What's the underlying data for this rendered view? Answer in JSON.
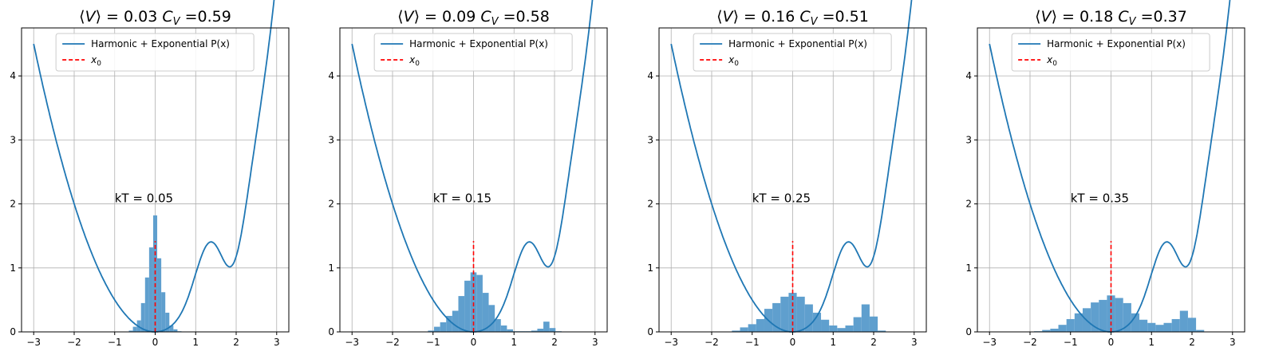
{
  "figure": {
    "colors": {
      "curve": "#1f77b4",
      "hist": "#5f9fce",
      "marker": "#ff0000",
      "grid": "#b0b0b0",
      "axis": "#000000"
    }
  },
  "chart_data": [
    {
      "type": "line+histogram",
      "title": "⟨V⟩ = 0.03 C_V =0.59",
      "title_parts": {
        "avg": "0.03",
        "cv": "0.59"
      },
      "annotation": "kT = 0.05",
      "legend": [
        "Harmonic + Exponential P(x)",
        "x_0"
      ],
      "legend_placement": "top-center",
      "xlim": [
        -3.3,
        3.3
      ],
      "ylim": [
        0,
        4.75
      ],
      "xticks": [
        "−3",
        "−2",
        "−1",
        "0",
        "1",
        "2",
        "3"
      ],
      "yticks": [
        "0",
        "1",
        "2",
        "3",
        "4"
      ],
      "grid": true,
      "x0": 0,
      "x0_line_height": 1.42,
      "histogram": {
        "bin_width": 0.1,
        "bins": [
          {
            "x": -0.6,
            "h": 0.02
          },
          {
            "x": -0.5,
            "h": 0.08
          },
          {
            "x": -0.4,
            "h": 0.18
          },
          {
            "x": -0.3,
            "h": 0.45
          },
          {
            "x": -0.2,
            "h": 0.85
          },
          {
            "x": -0.1,
            "h": 1.32
          },
          {
            "x": 0.0,
            "h": 1.82
          },
          {
            "x": 0.1,
            "h": 1.15
          },
          {
            "x": 0.2,
            "h": 0.62
          },
          {
            "x": 0.3,
            "h": 0.3
          },
          {
            "x": 0.4,
            "h": 0.1
          },
          {
            "x": 0.5,
            "h": 0.04
          },
          {
            "x": 0.6,
            "h": 0.01
          }
        ]
      }
    },
    {
      "type": "line+histogram",
      "title": "⟨V⟩ = 0.09 C_V =0.58",
      "title_parts": {
        "avg": "0.09",
        "cv": "0.58"
      },
      "annotation": "kT = 0.15",
      "legend": [
        "Harmonic + Exponential P(x)",
        "x_0"
      ],
      "legend_placement": "top-center",
      "xlim": [
        -3.3,
        3.3
      ],
      "ylim": [
        0,
        4.75
      ],
      "xticks": [
        "−3",
        "−2",
        "−1",
        "0",
        "1",
        "2",
        "3"
      ],
      "yticks": [
        "0",
        "1",
        "2",
        "3",
        "4"
      ],
      "grid": true,
      "x0": 0,
      "x0_line_height": 1.42,
      "histogram": {
        "bin_width": 0.15,
        "bins": [
          {
            "x": -1.05,
            "h": 0.02
          },
          {
            "x": -0.9,
            "h": 0.08
          },
          {
            "x": -0.75,
            "h": 0.15
          },
          {
            "x": -0.6,
            "h": 0.25
          },
          {
            "x": -0.45,
            "h": 0.33
          },
          {
            "x": -0.3,
            "h": 0.56
          },
          {
            "x": -0.15,
            "h": 0.8
          },
          {
            "x": 0.0,
            "h": 0.93
          },
          {
            "x": 0.15,
            "h": 0.89
          },
          {
            "x": 0.3,
            "h": 0.61
          },
          {
            "x": 0.45,
            "h": 0.42
          },
          {
            "x": 0.6,
            "h": 0.2
          },
          {
            "x": 0.75,
            "h": 0.1
          },
          {
            "x": 0.9,
            "h": 0.04
          },
          {
            "x": 1.05,
            "h": 0.01
          },
          {
            "x": 1.2,
            "h": 0.01
          },
          {
            "x": 1.35,
            "h": 0.01
          },
          {
            "x": 1.5,
            "h": 0.02
          },
          {
            "x": 1.65,
            "h": 0.05
          },
          {
            "x": 1.8,
            "h": 0.16
          },
          {
            "x": 1.95,
            "h": 0.06
          },
          {
            "x": 2.1,
            "h": 0.01
          }
        ]
      }
    },
    {
      "type": "line+histogram",
      "title": "⟨V⟩ = 0.16 C_V =0.51",
      "title_parts": {
        "avg": "0.16",
        "cv": "0.51"
      },
      "annotation": "kT = 0.25",
      "legend": [
        "Harmonic + Exponential P(x)",
        "x_0"
      ],
      "legend_placement": "top-center",
      "xlim": [
        -3.3,
        3.3
      ],
      "ylim": [
        0,
        4.75
      ],
      "xticks": [
        "−3",
        "−2",
        "−1",
        "0",
        "1",
        "2",
        "3"
      ],
      "yticks": [
        "0",
        "1",
        "2",
        "3",
        "4"
      ],
      "grid": true,
      "x0": 0,
      "x0_line_height": 1.42,
      "histogram": {
        "bin_width": 0.2,
        "bins": [
          {
            "x": -1.4,
            "h": 0.02
          },
          {
            "x": -1.2,
            "h": 0.07
          },
          {
            "x": -1.0,
            "h": 0.12
          },
          {
            "x": -0.8,
            "h": 0.2
          },
          {
            "x": -0.6,
            "h": 0.36
          },
          {
            "x": -0.4,
            "h": 0.45
          },
          {
            "x": -0.2,
            "h": 0.55
          },
          {
            "x": 0.0,
            "h": 0.61
          },
          {
            "x": 0.2,
            "h": 0.55
          },
          {
            "x": 0.4,
            "h": 0.43
          },
          {
            "x": 0.6,
            "h": 0.3
          },
          {
            "x": 0.8,
            "h": 0.19
          },
          {
            "x": 1.0,
            "h": 0.1
          },
          {
            "x": 1.2,
            "h": 0.06
          },
          {
            "x": 1.4,
            "h": 0.1
          },
          {
            "x": 1.6,
            "h": 0.23
          },
          {
            "x": 1.8,
            "h": 0.43
          },
          {
            "x": 2.0,
            "h": 0.24
          },
          {
            "x": 2.2,
            "h": 0.02
          }
        ]
      }
    },
    {
      "type": "line+histogram",
      "title": "⟨V⟩ = 0.18 C_V =0.37",
      "title_parts": {
        "avg": "0.18",
        "cv": "0.37"
      },
      "annotation": "kT = 0.35",
      "legend": [
        "Harmonic + Exponential P(x)",
        "x_0"
      ],
      "legend_placement": "top-center",
      "xlim": [
        -3.3,
        3.3
      ],
      "ylim": [
        0,
        4.75
      ],
      "xticks": [
        "−3",
        "−2",
        "−1",
        "0",
        "1",
        "2",
        "3"
      ],
      "yticks": [
        "0",
        "1",
        "2",
        "3",
        "4"
      ],
      "grid": true,
      "x0": 0,
      "x0_line_height": 1.42,
      "histogram": {
        "bin_width": 0.2,
        "bins": [
          {
            "x": -1.8,
            "h": 0.01
          },
          {
            "x": -1.6,
            "h": 0.03
          },
          {
            "x": -1.4,
            "h": 0.05
          },
          {
            "x": -1.2,
            "h": 0.11
          },
          {
            "x": -1.0,
            "h": 0.2
          },
          {
            "x": -0.8,
            "h": 0.29
          },
          {
            "x": -0.6,
            "h": 0.37
          },
          {
            "x": -0.4,
            "h": 0.46
          },
          {
            "x": -0.2,
            "h": 0.5
          },
          {
            "x": 0.0,
            "h": 0.57
          },
          {
            "x": 0.2,
            "h": 0.53
          },
          {
            "x": 0.4,
            "h": 0.45
          },
          {
            "x": 0.6,
            "h": 0.29
          },
          {
            "x": 0.8,
            "h": 0.19
          },
          {
            "x": 1.0,
            "h": 0.14
          },
          {
            "x": 1.2,
            "h": 0.11
          },
          {
            "x": 1.4,
            "h": 0.14
          },
          {
            "x": 1.6,
            "h": 0.2
          },
          {
            "x": 1.8,
            "h": 0.33
          },
          {
            "x": 2.0,
            "h": 0.22
          },
          {
            "x": 2.2,
            "h": 0.03
          }
        ]
      }
    }
  ]
}
